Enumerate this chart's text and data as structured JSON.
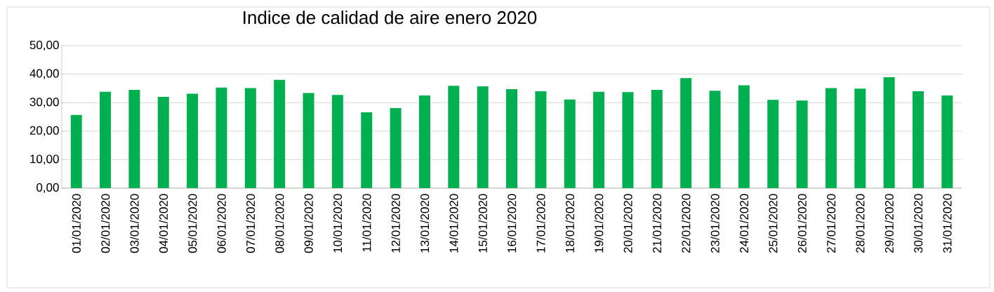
{
  "chart_data": {
    "type": "bar",
    "title": "Indice de calidad de aire enero 2020",
    "categories": [
      "01/01/2020",
      "02/01/2020",
      "03/01/2020",
      "04/01/2020",
      "05/01/2020",
      "06/01/2020",
      "07/01/2020",
      "08/01/2020",
      "09/01/2020",
      "10/01/2020",
      "11/01/2020",
      "12/01/2020",
      "13/01/2020",
      "14/01/2020",
      "15/01/2020",
      "16/01/2020",
      "17/01/2020",
      "18/01/2020",
      "19/01/2020",
      "20/01/2020",
      "21/01/2020",
      "22/01/2020",
      "23/01/2020",
      "24/01/2020",
      "25/01/2020",
      "26/01/2020",
      "27/01/2020",
      "28/01/2020",
      "29/01/2020",
      "30/01/2020",
      "31/01/2020"
    ],
    "values": [
      25.7,
      33.8,
      34.5,
      32.0,
      33.1,
      35.3,
      35.1,
      38.0,
      33.4,
      32.7,
      26.6,
      28.1,
      32.5,
      35.9,
      35.7,
      34.7,
      34.0,
      31.1,
      33.8,
      33.7,
      34.5,
      38.6,
      34.2,
      36.1,
      31.0,
      30.7,
      35.1,
      34.9,
      38.9,
      34.0,
      32.5
    ],
    "color": "#00b050",
    "ylim": [
      0,
      50
    ],
    "yticks": [
      {
        "value": 0,
        "label": "0,00"
      },
      {
        "value": 10,
        "label": "10,00"
      },
      {
        "value": 20,
        "label": "20,00"
      },
      {
        "value": 30,
        "label": "30,00"
      },
      {
        "value": 40,
        "label": "40,00"
      },
      {
        "value": 50,
        "label": "50,00"
      }
    ],
    "grid": "y"
  }
}
